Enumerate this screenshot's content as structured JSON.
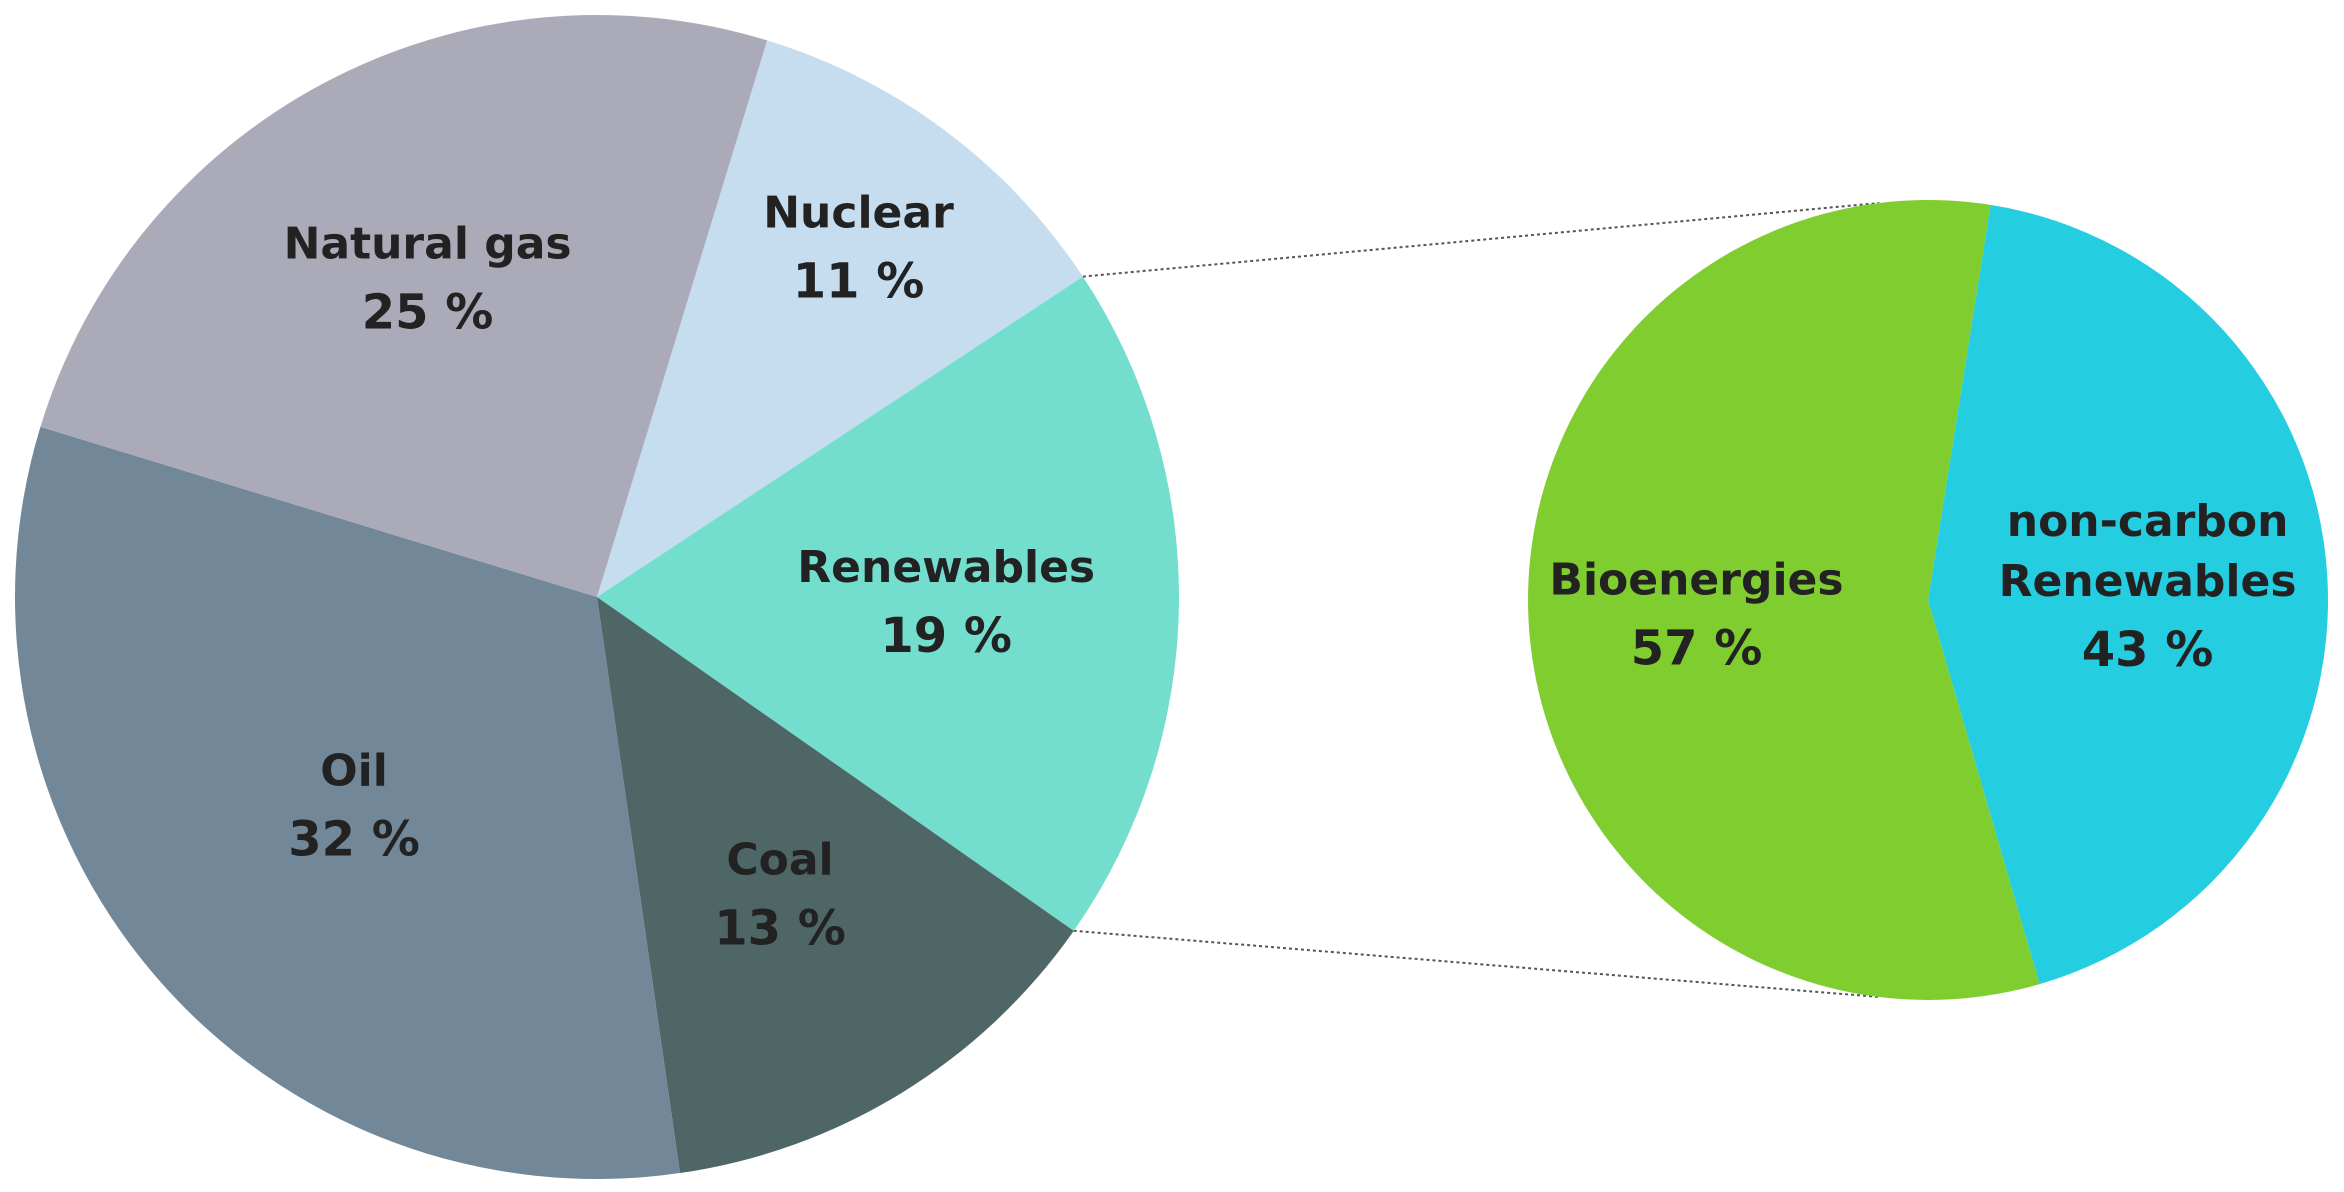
{
  "chart_data": [
    {
      "type": "pie",
      "slices": [
        {
          "label": "Nuclear",
          "value": 11,
          "value_label": "11 %",
          "color": "#c6ddf0"
        },
        {
          "label": "Renewables",
          "value": 19,
          "value_label": "19 %",
          "color": "#73dece"
        },
        {
          "label": "Coal",
          "value": 13,
          "value_label": "13 %",
          "color": "#4e6665"
        },
        {
          "label": "Oil",
          "value": 32,
          "value_label": "32 %",
          "color": "#728797"
        },
        {
          "label": "Natural gas",
          "value": 25,
          "value_label": "25 %",
          "color": "#abaab9"
        }
      ],
      "legend": "none"
    },
    {
      "type": "pie",
      "slices": [
        {
          "label": "non-carbon Renewables",
          "label_lines": [
            "non-carbon",
            "Renewables"
          ],
          "value": 43,
          "value_label": "43 %",
          "color": "#25cde0"
        },
        {
          "label": "Bioenergies",
          "value": 57,
          "value_label": "57 %",
          "color": "#80cd30"
        }
      ],
      "legend": "none",
      "breakout_of": "Renewables"
    }
  ],
  "colors": {
    "background": "#ffffff",
    "label_text": "#222222",
    "connector": "#555555"
  }
}
